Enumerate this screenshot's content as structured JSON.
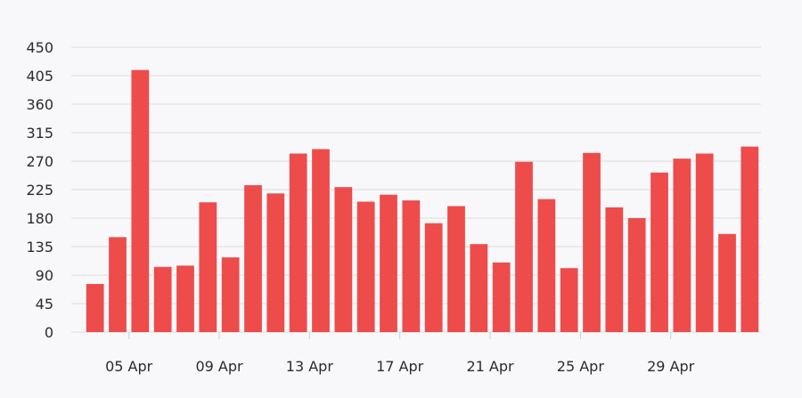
{
  "chart_data": {
    "type": "bar",
    "title": "",
    "xlabel": "",
    "ylabel": "",
    "ylim": [
      0,
      450
    ],
    "y_ticks": [
      0,
      45,
      90,
      135,
      180,
      225,
      270,
      315,
      360,
      405,
      450
    ],
    "grid": true,
    "legend": "none",
    "bar_color": "#ee4b4b",
    "x_ticks": [
      {
        "label": "05 Apr",
        "index": 1.5
      },
      {
        "label": "09 Apr",
        "index": 5.5
      },
      {
        "label": "13 Apr",
        "index": 9.5
      },
      {
        "label": "17 Apr",
        "index": 13.5
      },
      {
        "label": "21 Apr",
        "index": 17.5
      },
      {
        "label": "25 Apr",
        "index": 21.5
      },
      {
        "label": "29 Apr",
        "index": 25.5
      }
    ],
    "series": [
      {
        "values": [
          76,
          150,
          414,
          103,
          105,
          205,
          118,
          232,
          219,
          282,
          289,
          229,
          206,
          217,
          208,
          172,
          199,
          139,
          110,
          269,
          210,
          101,
          283,
          197,
          180,
          252,
          274,
          282,
          155,
          293
        ]
      }
    ]
  }
}
